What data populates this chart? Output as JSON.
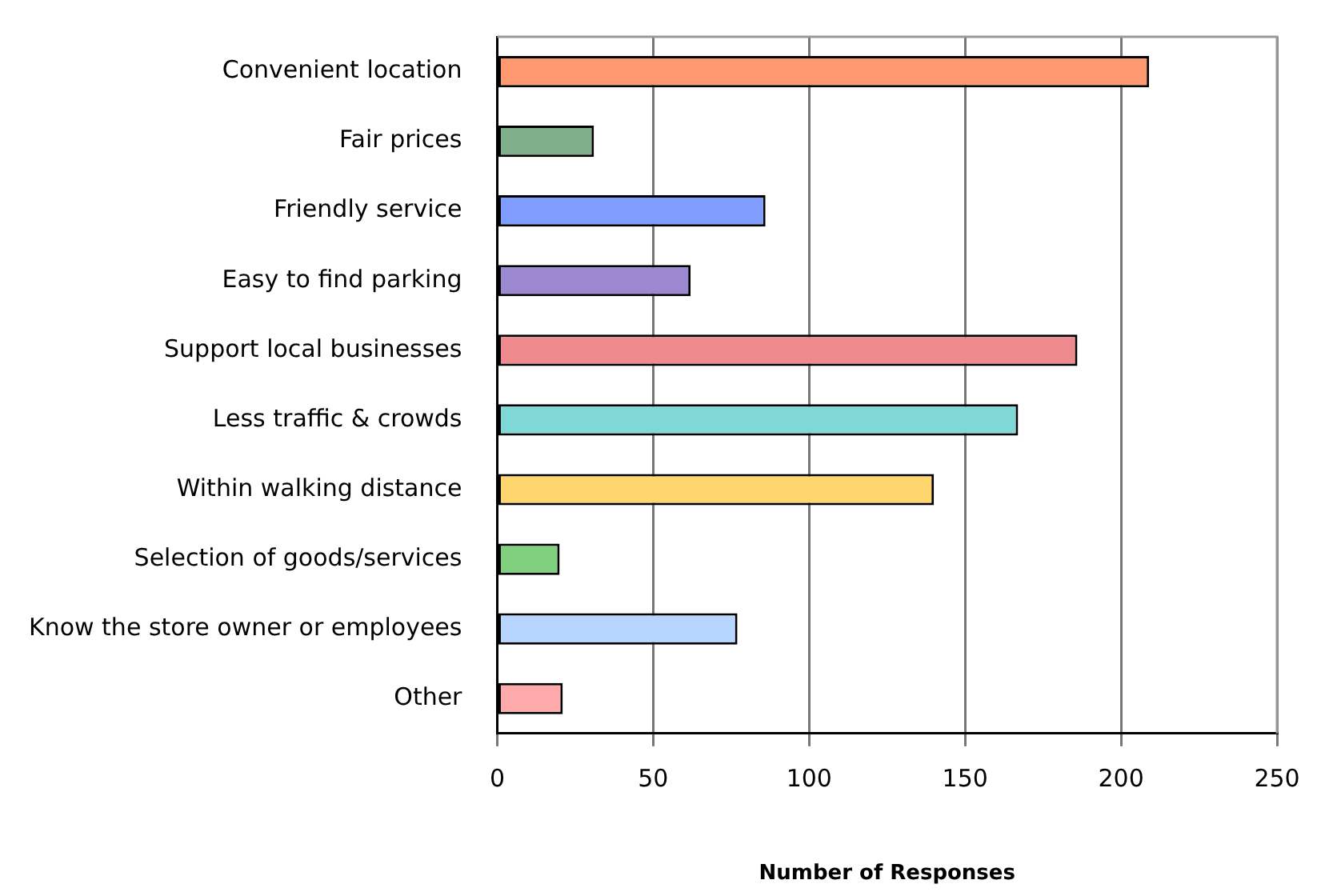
{
  "chart_data": {
    "type": "bar",
    "orientation": "horizontal",
    "xlabel": "Number of Responses",
    "categories": [
      "Convenient location",
      "Fair prices",
      "Friendly service",
      "Easy to find parking",
      "Support local businesses",
      "Less traffic & crowds",
      "Within walking distance",
      "Selection of goods/services",
      "Know the store owner or employees",
      "Other"
    ],
    "values": [
      209,
      31,
      86,
      62,
      186,
      167,
      140,
      20,
      77,
      21
    ],
    "colors": [
      "#ff9a70",
      "#7fae8a",
      "#7f9cff",
      "#9c88d0",
      "#ee8a8e",
      "#7fd8d6",
      "#ffd66e",
      "#7fcf7f",
      "#b6d6ff",
      "#ffaaaa"
    ],
    "xlim": [
      0,
      250
    ],
    "xticks": [
      0,
      50,
      100,
      150,
      200,
      250
    ],
    "grid": "x",
    "legend": false
  }
}
